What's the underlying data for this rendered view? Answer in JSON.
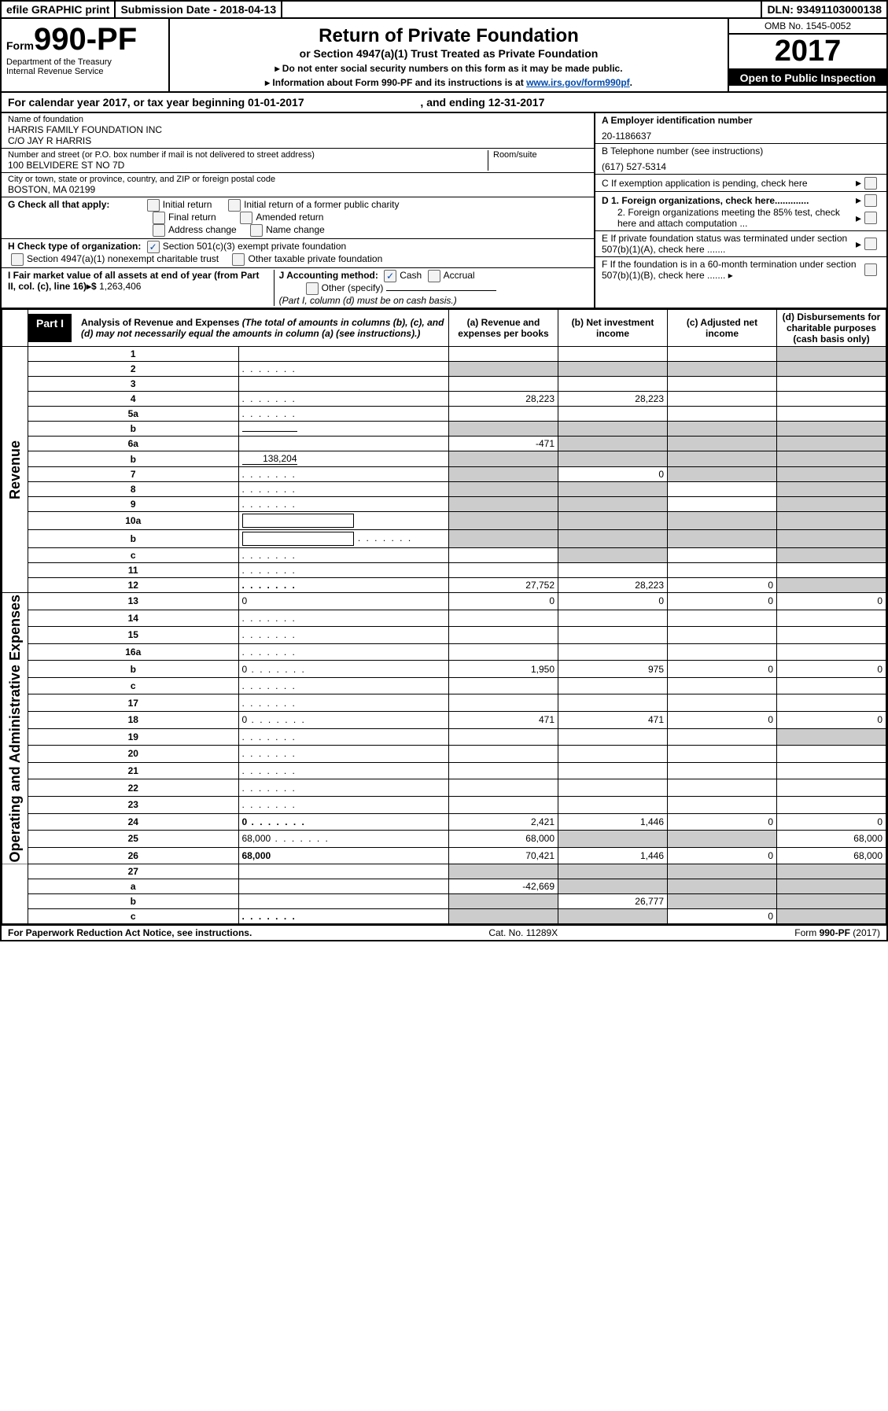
{
  "topbar": {
    "efile": "efile GRAPHIC print",
    "submission": "Submission Date - 2018-04-13",
    "dln": "DLN: 93491103000138"
  },
  "header": {
    "form_word": "Form",
    "form_no": "990-PF",
    "dept_line1": "Department of the Treasury",
    "dept_line2": "Internal Revenue Service",
    "main_title": "Return of Private Foundation",
    "sub_title": "or Section 4947(a)(1) Trust Treated as Private Foundation",
    "notice1": "▸ Do not enter social security numbers on this form as it may be made public.",
    "notice2_pre": "▸ Information about Form 990-PF and its instructions is at ",
    "notice2_link": "www.irs.gov/form990pf",
    "notice2_post": ".",
    "omb": "OMB No. 1545-0052",
    "year": "2017",
    "open": "Open to Public Inspection"
  },
  "calyear": {
    "pre": "For calendar year 2017, or tax year beginning ",
    "begin": "01-01-2017",
    "mid": " , and ending ",
    "end": "12-31-2017"
  },
  "info_left": {
    "name_label": "Name of foundation",
    "name_line1": "HARRIS FAMILY FOUNDATION INC",
    "name_line2": "C/O JAY R HARRIS",
    "street_label": "Number and street (or P.O. box number if mail is not delivered to street address)",
    "street_value": "100 BELVIDERE ST NO 7D",
    "room_label": "Room/suite",
    "city_label": "City or town, state or province, country, and ZIP or foreign postal code",
    "city_value": "BOSTON, MA  02199"
  },
  "info_right": {
    "a_label": "A Employer identification number",
    "a_value": "20-1186637",
    "b_label": "B Telephone number (see instructions)",
    "b_value": "(617) 527-5314",
    "c_label": "C If exemption application is pending, check here",
    "d1": "D 1. Foreign organizations, check here.............",
    "d2": "2. Foreign organizations meeting the 85% test, check here and attach computation ...",
    "e": "E  If private foundation status was terminated under section 507(b)(1)(A), check here .......",
    "f": "F  If the foundation is in a 60-month termination under section 507(b)(1)(B), check here .......  ▸"
  },
  "g_block": {
    "g_label": "G Check all that apply:",
    "opts": [
      "Initial return",
      "Initial return of a former public charity",
      "Final return",
      "Amended return",
      "Address change",
      "Name change"
    ]
  },
  "h_block": {
    "h_label": "H Check type of organization:",
    "h_opt1": "Section 501(c)(3) exempt private foundation",
    "h_opt2": "Section 4947(a)(1) nonexempt charitable trust",
    "h_opt3": "Other taxable private foundation"
  },
  "i_block": {
    "i_label": "I Fair market value of all assets at end of year (from Part II, col. (c), line 16)▸$",
    "i_value": "1,263,406"
  },
  "j_block": {
    "j_label": "J Accounting method:",
    "j_cash": "Cash",
    "j_accrual": "Accrual",
    "j_other": "Other (specify)",
    "j_note": "(Part I, column (d) must be on cash basis.)"
  },
  "part1": {
    "label": "Part I",
    "title": "Analysis of Revenue and Expenses",
    "desc": " (The total of amounts in columns (b), (c), and (d) may not necessarily equal the amounts in column (a) (see instructions).)",
    "col_a": "(a)   Revenue and expenses per books",
    "col_b": "(b)   Net investment income",
    "col_c": "(c)  Adjusted net income",
    "col_d": "(d)  Disbursements for charitable purposes (cash basis only)"
  },
  "revenue_label": "Revenue",
  "expenses_label": "Operating and Administrative Expenses",
  "rows": [
    {
      "n": "1",
      "d": "",
      "a": "",
      "b": "",
      "c": "",
      "shade": [
        "d"
      ]
    },
    {
      "n": "2",
      "d": "",
      "dots": true,
      "a": "",
      "b": "",
      "c": "",
      "shade": [
        "a",
        "b",
        "c",
        "d"
      ]
    },
    {
      "n": "3",
      "d": "",
      "a": "",
      "b": "",
      "c": ""
    },
    {
      "n": "4",
      "d": "",
      "dots": true,
      "a": "28,223",
      "b": "28,223",
      "c": ""
    },
    {
      "n": "5a",
      "d": "",
      "dots": true,
      "a": "",
      "b": "",
      "c": ""
    },
    {
      "n": "b",
      "d": "",
      "a": "",
      "b": "",
      "c": "",
      "shade": [
        "a",
        "b",
        "c",
        "d"
      ],
      "inline": ""
    },
    {
      "n": "6a",
      "d": "",
      "a": "-471",
      "b": "",
      "c": "",
      "shade": [
        "b",
        "c",
        "d"
      ]
    },
    {
      "n": "b",
      "d": "",
      "a": "",
      "b": "",
      "c": "",
      "shade": [
        "a",
        "b",
        "c",
        "d"
      ],
      "inline": "138,204"
    },
    {
      "n": "7",
      "d": "",
      "dots": true,
      "a": "",
      "b": "0",
      "c": "",
      "shade": [
        "a",
        "c",
        "d"
      ]
    },
    {
      "n": "8",
      "d": "",
      "dots": true,
      "a": "",
      "b": "",
      "c": "",
      "shade": [
        "a",
        "b",
        "d"
      ]
    },
    {
      "n": "9",
      "d": "",
      "dots": true,
      "a": "",
      "b": "",
      "c": "",
      "shade": [
        "a",
        "b",
        "d"
      ]
    },
    {
      "n": "10a",
      "d": "",
      "a": "",
      "b": "",
      "c": "",
      "shade": [
        "a",
        "b",
        "c",
        "d"
      ],
      "box": true
    },
    {
      "n": "b",
      "d": "",
      "dots": true,
      "a": "",
      "b": "",
      "c": "",
      "shade": [
        "a",
        "b",
        "c",
        "d"
      ],
      "box": true
    },
    {
      "n": "c",
      "d": "",
      "dots": true,
      "a": "",
      "b": "",
      "c": "",
      "shade": [
        "b",
        "d"
      ]
    },
    {
      "n": "11",
      "d": "",
      "dots": true,
      "a": "",
      "b": "",
      "c": ""
    },
    {
      "n": "12",
      "d": "",
      "dots": true,
      "a": "27,752",
      "b": "28,223",
      "c": "0",
      "bold": true,
      "shade": [
        "d"
      ]
    },
    {
      "n": "13",
      "d": "0",
      "a": "0",
      "b": "0",
      "c": "0"
    },
    {
      "n": "14",
      "d": "",
      "dots": true,
      "a": "",
      "b": "",
      "c": ""
    },
    {
      "n": "15",
      "d": "",
      "dots": true,
      "a": "",
      "b": "",
      "c": ""
    },
    {
      "n": "16a",
      "d": "",
      "dots": true,
      "a": "",
      "b": "",
      "c": ""
    },
    {
      "n": "b",
      "d": "0",
      "dots": true,
      "a": "1,950",
      "b": "975",
      "c": "0"
    },
    {
      "n": "c",
      "d": "",
      "dots": true,
      "a": "",
      "b": "",
      "c": ""
    },
    {
      "n": "17",
      "d": "",
      "dots": true,
      "a": "",
      "b": "",
      "c": ""
    },
    {
      "n": "18",
      "d": "0",
      "dots": true,
      "a": "471",
      "b": "471",
      "c": "0"
    },
    {
      "n": "19",
      "d": "",
      "dots": true,
      "a": "",
      "b": "",
      "c": "",
      "shade": [
        "d"
      ]
    },
    {
      "n": "20",
      "d": "",
      "dots": true,
      "a": "",
      "b": "",
      "c": ""
    },
    {
      "n": "21",
      "d": "",
      "dots": true,
      "a": "",
      "b": "",
      "c": ""
    },
    {
      "n": "22",
      "d": "",
      "dots": true,
      "a": "",
      "b": "",
      "c": ""
    },
    {
      "n": "23",
      "d": "",
      "dots": true,
      "a": "",
      "b": "",
      "c": ""
    },
    {
      "n": "24",
      "d": "0",
      "dots": true,
      "a": "2,421",
      "b": "1,446",
      "c": "0",
      "bold": true
    },
    {
      "n": "25",
      "d": "68,000",
      "dots": true,
      "a": "68,000",
      "b": "",
      "c": "",
      "shade": [
        "b",
        "c"
      ]
    },
    {
      "n": "26",
      "d": "68,000",
      "a": "70,421",
      "b": "1,446",
      "c": "0",
      "bold": true
    },
    {
      "n": "27",
      "d": "",
      "a": "",
      "b": "",
      "c": "",
      "shade": [
        "a",
        "b",
        "c",
        "d"
      ]
    },
    {
      "n": "a",
      "d": "",
      "a": "-42,669",
      "b": "",
      "c": "",
      "bold": true,
      "shade": [
        "b",
        "c",
        "d"
      ]
    },
    {
      "n": "b",
      "d": "",
      "a": "",
      "b": "26,777",
      "c": "",
      "bold": true,
      "shade": [
        "a",
        "c",
        "d"
      ]
    },
    {
      "n": "c",
      "d": "",
      "dots": true,
      "a": "",
      "b": "",
      "c": "0",
      "bold": true,
      "shade": [
        "a",
        "b",
        "d"
      ]
    }
  ],
  "footer": {
    "left": "For Paperwork Reduction Act Notice, see instructions.",
    "center": "Cat. No. 11289X",
    "right": "Form 990-PF (2017)"
  }
}
